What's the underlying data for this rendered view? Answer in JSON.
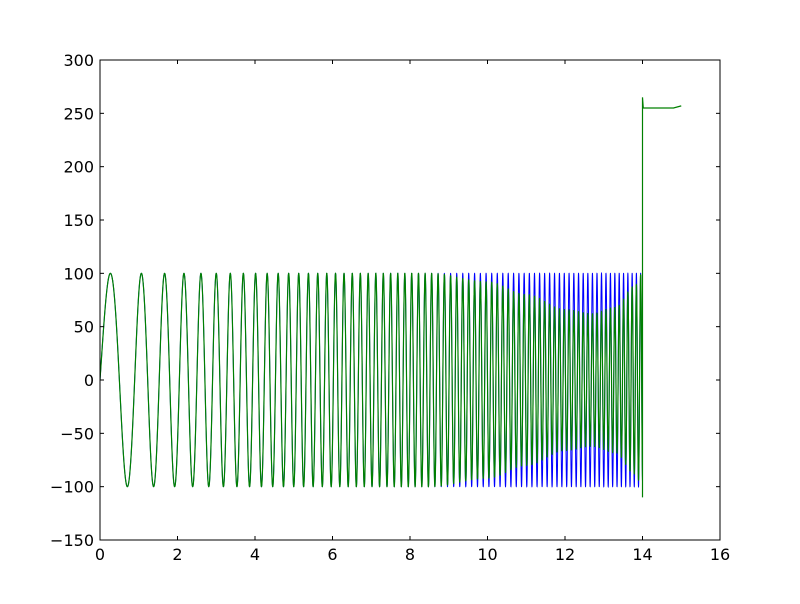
{
  "chart_data": {
    "type": "line",
    "title": "",
    "xlabel": "",
    "ylabel": "",
    "xlim": [
      0,
      16
    ],
    "ylim": [
      -150,
      300
    ],
    "grid": false,
    "x_ticks": [
      "0",
      "2",
      "4",
      "6",
      "8",
      "10",
      "12",
      "14",
      "16"
    ],
    "y_ticks": [
      "−150",
      "−100",
      "−50",
      "0",
      "50",
      "100",
      "150",
      "200",
      "250",
      "300"
    ],
    "x_tick_values": [
      0,
      2,
      4,
      6,
      8,
      10,
      12,
      14,
      16
    ],
    "y_tick_values": [
      -150,
      -100,
      -50,
      0,
      50,
      100,
      150,
      200,
      250,
      300
    ],
    "series": [
      {
        "color": "#0000ff",
        "kind": "chirp sine",
        "amplitude": 100,
        "x_range": [
          0,
          14
        ],
        "start_frequency": 0.85,
        "frequency_slope": 0.6
      },
      {
        "color": "#008000",
        "kind": "chirp sine with varying envelope, then step",
        "x_range": [
          0,
          15
        ],
        "envelope": [
          [
            0,
            100
          ],
          [
            8.5,
            100
          ],
          [
            10,
            92
          ],
          [
            11,
            80
          ],
          [
            12,
            66
          ],
          [
            12.7,
            62
          ],
          [
            13.3,
            68
          ],
          [
            13.8,
            88
          ],
          [
            14,
            100
          ]
        ],
        "spike_max": 265,
        "spike_min": -110,
        "plateau": [
          [
            14.05,
            255
          ],
          [
            14.8,
            255
          ],
          [
            15,
            257
          ]
        ]
      }
    ]
  }
}
